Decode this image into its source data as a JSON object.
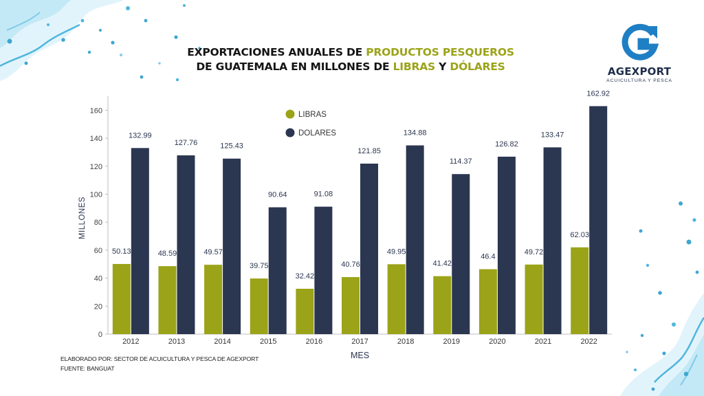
{
  "header": {
    "title_part1": "EXPORTACIONES ANUALES DE ",
    "title_highlight1": "PRODUCTOS PESQUEROS",
    "title_part2": "DE GUATEMALA EN MILLONES DE ",
    "title_highlight2": "LIBRAS",
    "title_part3": " Y ",
    "title_highlight3": "DÓLARES"
  },
  "logo": {
    "name": "AGEXPORT",
    "subtitle": "ACUICULTURA Y PESCA"
  },
  "footer": {
    "line1": "ELABORADO POR: SECTOR DE ACUICULTURA Y PESCA DE AGEXPORT",
    "line2": "FUENTE:  BANGUAT"
  },
  "colors": {
    "libras": "#9ba318",
    "dolares": "#2b3650",
    "highlight": "#9ba318",
    "logo_blue": "#1f7fc4",
    "logo_dark": "#1f2e4b",
    "splash": "#5cc2e6"
  },
  "chart_data": {
    "type": "bar",
    "categories": [
      "2012",
      "2013",
      "2014",
      "2015",
      "2016",
      "2017",
      "2018",
      "2019",
      "2020",
      "2021",
      "2022"
    ],
    "series": [
      {
        "name": "LIBRAS",
        "values": [
          50.13,
          48.59,
          49.57,
          39.75,
          32.42,
          40.76,
          49.95,
          41.42,
          46.4,
          49.72,
          62.03
        ]
      },
      {
        "name": "DOLARES",
        "values": [
          132.99,
          127.76,
          125.43,
          90.64,
          91.08,
          121.85,
          134.88,
          114.37,
          126.82,
          133.47,
          162.92
        ]
      }
    ],
    "xlabel": "MES",
    "ylabel": "MILLONES",
    "ylim": [
      0,
      170
    ],
    "yticks": [
      0,
      20,
      40,
      60,
      80,
      100,
      120,
      140,
      160
    ],
    "grid": false,
    "legend_position": "top-left"
  }
}
